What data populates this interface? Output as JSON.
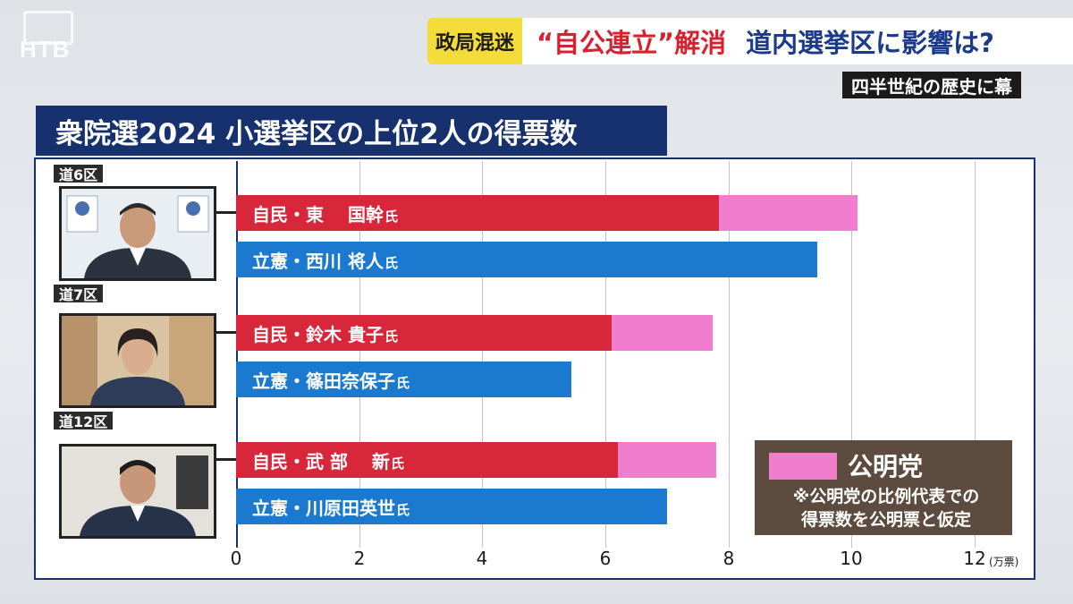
{
  "channel_logo": "HTB",
  "banner": {
    "tag": "政局混迷",
    "headline_1": "“自公連立”解消",
    "headline_2": "道内選挙区に影響は?"
  },
  "subtitle": "四半世紀の歴史に幕",
  "chart_title": "衆院選2024 小選挙区の上位2人の得票数",
  "chart_data": {
    "type": "bar",
    "orientation": "horizontal",
    "stacked": true,
    "title": "衆院選2024 小選挙区の上位2人の得票数",
    "x_unit": "(万票)",
    "xlim": [
      0,
      12
    ],
    "x_ticks": [
      "0",
      "2",
      "4",
      "6",
      "8",
      "10",
      "12"
    ],
    "grid": true,
    "legend_position": "bottom-right",
    "groups": [
      {
        "district": "道6区",
        "bars": [
          {
            "label": "自民・東　 国幹",
            "suffix": "氏",
            "party": "LDP",
            "value": 7.85,
            "komeito": 2.25
          },
          {
            "label": "立憲・西川 将人",
            "suffix": "氏",
            "party": "CDP",
            "value": 9.45,
            "komeito": 0
          }
        ]
      },
      {
        "district": "道7区",
        "bars": [
          {
            "label": "自民・鈴木 貴子",
            "suffix": "氏",
            "party": "LDP",
            "value": 6.1,
            "komeito": 1.65
          },
          {
            "label": "立憲・篠田奈保子",
            "suffix": "氏",
            "party": "CDP",
            "value": 5.45,
            "komeito": 0
          }
        ]
      },
      {
        "district": "道12区",
        "bars": [
          {
            "label": "自民・武 部　 新",
            "suffix": "氏",
            "party": "LDP",
            "value": 6.2,
            "komeito": 1.6
          },
          {
            "label": "立憲・川原田英世",
            "suffix": "氏",
            "party": "CDP",
            "value": 7.0,
            "komeito": 0
          }
        ]
      }
    ],
    "colors": {
      "LDP": "#d8263a",
      "CDP": "#1b7ad0",
      "komeito": "#f07dce"
    }
  },
  "legend": {
    "name": "公明党",
    "note_1": "※公明党の比例代表での",
    "note_2": "得票数を公明票と仮定"
  }
}
